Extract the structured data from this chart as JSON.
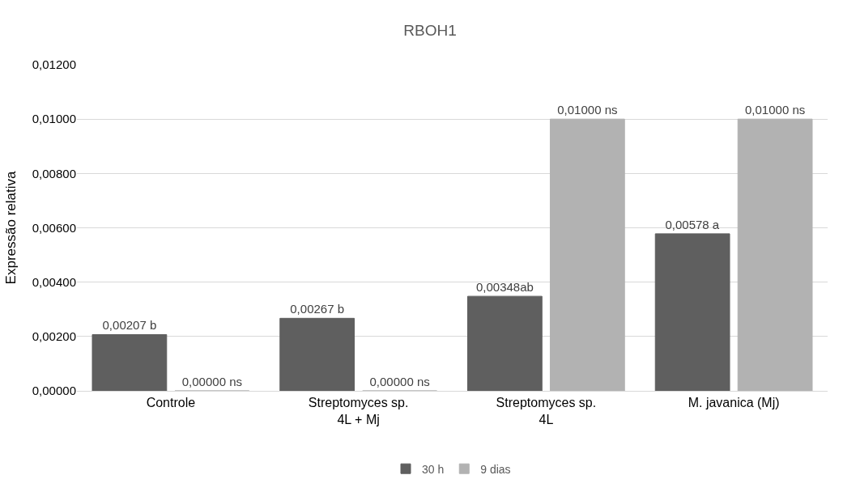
{
  "chart_data": {
    "type": "bar",
    "title": "RBOH1",
    "ylabel": "Expressão relativa",
    "categories": [
      "Controle",
      "Streptomyces sp.\n4L + Mj",
      "Streptomyces sp.\n4L",
      "M. javanica (Mj)"
    ],
    "series": [
      {
        "name": "30 h",
        "color": "#5f5f5f",
        "values": [
          0.00207,
          0.00267,
          0.00348,
          0.00578
        ],
        "value_labels": [
          "0,00207 b",
          "0,00267 b",
          "0,00348ab",
          "0,00578 a"
        ]
      },
      {
        "name": "9 dias",
        "color": "#b2b2b2",
        "values": [
          0,
          0,
          0.01,
          0.01
        ],
        "value_labels": [
          "0,00000 ns",
          "0,00000 ns",
          "0,01000 ns",
          "0,01000 ns"
        ]
      }
    ],
    "ylim": [
      0,
      0.012
    ],
    "yticks": [
      {
        "value": 0,
        "label": "0,00000"
      },
      {
        "value": 0.002,
        "label": "0,00200"
      },
      {
        "value": 0.004,
        "label": "0,00400"
      },
      {
        "value": 0.006,
        "label": "0,00600"
      },
      {
        "value": 0.008,
        "label": "0,00800"
      },
      {
        "value": 0.01,
        "label": "0,01000"
      },
      {
        "value": 0.012,
        "label": "0,01200"
      }
    ],
    "grid": "y",
    "legend": "bottom"
  }
}
